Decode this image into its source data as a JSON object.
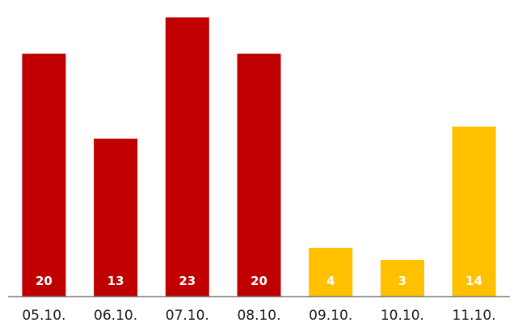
{
  "chart_data": {
    "type": "bar",
    "categories": [
      "05.10.",
      "06.10.",
      "07.10.",
      "08.10.",
      "09.10.",
      "10.10.",
      "11.10."
    ],
    "values": [
      20,
      13,
      23,
      20,
      4,
      3,
      14
    ],
    "bar_colors": [
      "#c00000",
      "#c00000",
      "#c00000",
      "#c00000",
      "#ffc000",
      "#ffc000",
      "#ffc000"
    ],
    "data_labels": [
      "20",
      "13",
      "23",
      "20",
      "4",
      "3",
      "14"
    ],
    "title": "",
    "xlabel": "",
    "ylabel": "",
    "ylim": [
      0,
      23.5
    ],
    "grid": false,
    "axis_color": "#7f7f7f"
  }
}
